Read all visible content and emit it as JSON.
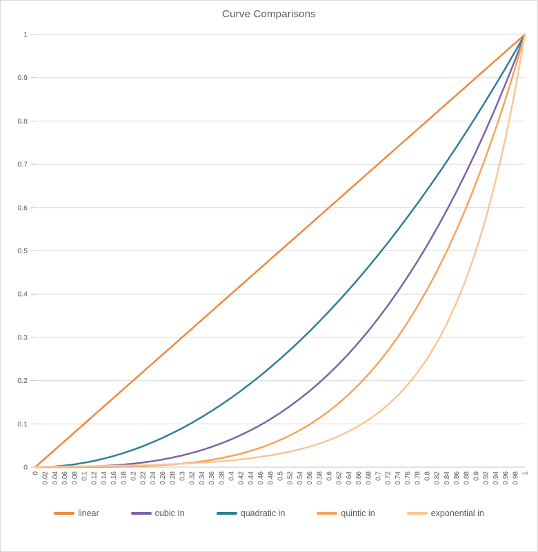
{
  "chart_data": {
    "type": "line",
    "title": "Curve Comparisons",
    "xlabel": "",
    "ylabel": "",
    "xlim": [
      0,
      1
    ],
    "ylim": [
      0,
      1
    ],
    "grid": "horizontal-only",
    "legend_position": "bottom",
    "y_tick_labels": [
      "1",
      "0.9",
      "0.8",
      "0.7",
      "0.6",
      "0.5",
      "0.4",
      "0.3",
      "0.2",
      "0.1",
      "0"
    ],
    "x": [
      0,
      0.02,
      0.04,
      0.06,
      0.08,
      0.1,
      0.12,
      0.14,
      0.16,
      0.18,
      0.2,
      0.22,
      0.24,
      0.26,
      0.28,
      0.3,
      0.32,
      0.34,
      0.36,
      0.38,
      0.4,
      0.42,
      0.44,
      0.46,
      0.48,
      0.5,
      0.52,
      0.54,
      0.56,
      0.58,
      0.6,
      0.62,
      0.64,
      0.66,
      0.68,
      0.7,
      0.72,
      0.74,
      0.76,
      0.78,
      0.8,
      0.82,
      0.84,
      0.86,
      0.88,
      0.9,
      0.92,
      0.94,
      0.96,
      0.98,
      1
    ],
    "x_tick_labels": [
      "0",
      "0.02",
      "0.04",
      "0.06",
      "0.08",
      "0.1",
      "0.12",
      "0.14",
      "0.16",
      "0.18",
      "0.2",
      "0.22",
      "0.24",
      "0.26",
      "0.28",
      "0.3",
      "0.32",
      "0.34",
      "0.36",
      "0.38",
      "0.4",
      "0.42",
      "0.44",
      "0.46",
      "0.48",
      "0.5",
      "0.52",
      "0.54",
      "0.56",
      "0.58",
      "0.6",
      "0.62",
      "0.64",
      "0.66",
      "0.68",
      "0.7",
      "0.72",
      "0.74",
      "0.76",
      "0.78",
      "0.8",
      "0.82",
      "0.84",
      "0.86",
      "0.88",
      "0.9",
      "0.92",
      "0.94",
      "0.96",
      "0.98",
      "1"
    ],
    "series": [
      {
        "name": "linear",
        "color": "#F0883E",
        "values": [
          0,
          0.02,
          0.04,
          0.06,
          0.08,
          0.1,
          0.12,
          0.14,
          0.16,
          0.18,
          0.2,
          0.22,
          0.24,
          0.26,
          0.28,
          0.3,
          0.32,
          0.34,
          0.36,
          0.38,
          0.4,
          0.42,
          0.44,
          0.46,
          0.48,
          0.5,
          0.52,
          0.54,
          0.56,
          0.58,
          0.6,
          0.62,
          0.64,
          0.66,
          0.68,
          0.7,
          0.72,
          0.74,
          0.76,
          0.78,
          0.8,
          0.82,
          0.84,
          0.86,
          0.88,
          0.9,
          0.92,
          0.94,
          0.96,
          0.98,
          1
        ]
      },
      {
        "name": "cubic In",
        "color": "#7D63A8",
        "values": [
          0,
          0,
          0.0001,
          0.0002,
          0.0005,
          0.001,
          0.0017,
          0.0027,
          0.0041,
          0.0058,
          0.008,
          0.0106,
          0.0138,
          0.0176,
          0.022,
          0.027,
          0.0328,
          0.0393,
          0.0467,
          0.0549,
          0.064,
          0.0741,
          0.0852,
          0.0973,
          0.1106,
          0.125,
          0.1406,
          0.1575,
          0.1756,
          0.1951,
          0.216,
          0.2383,
          0.2621,
          0.2875,
          0.3144,
          0.343,
          0.3732,
          0.4052,
          0.439,
          0.4746,
          0.512,
          0.5514,
          0.5927,
          0.6361,
          0.6815,
          0.729,
          0.7787,
          0.8306,
          0.8847,
          0.9412,
          1
        ]
      },
      {
        "name": "quadratic in",
        "color": "#2E7F93",
        "values": [
          0,
          0.0004,
          0.0016,
          0.0036,
          0.0064,
          0.01,
          0.0144,
          0.0196,
          0.0256,
          0.0324,
          0.04,
          0.0484,
          0.0576,
          0.0676,
          0.0784,
          0.09,
          0.1024,
          0.1156,
          0.1296,
          0.1444,
          0.16,
          0.1764,
          0.1936,
          0.2116,
          0.2304,
          0.25,
          0.2704,
          0.2916,
          0.3136,
          0.3364,
          0.36,
          0.3844,
          0.4096,
          0.4356,
          0.4624,
          0.49,
          0.5184,
          0.5476,
          0.5776,
          0.6084,
          0.64,
          0.6724,
          0.7056,
          0.7396,
          0.7744,
          0.81,
          0.8464,
          0.8836,
          0.9216,
          0.9604,
          1
        ]
      },
      {
        "name": "quintic in",
        "color": "#F5A35C",
        "values": [
          0,
          0,
          0,
          0,
          0,
          0.0001,
          0.0002,
          0.0004,
          0.0007,
          0.001,
          0.0016,
          0.0023,
          0.0033,
          0.0046,
          0.0061,
          0.0081,
          0.0105,
          0.0134,
          0.0168,
          0.0209,
          0.0256,
          0.0311,
          0.0375,
          0.0448,
          0.0531,
          0.0625,
          0.0731,
          0.085,
          0.0983,
          0.1132,
          0.1296,
          0.1478,
          0.1678,
          0.1897,
          0.2138,
          0.2401,
          0.2687,
          0.2999,
          0.3336,
          0.3702,
          0.4096,
          0.4521,
          0.4979,
          0.547,
          0.5997,
          0.6561,
          0.7164,
          0.7807,
          0.8493,
          0.9224,
          1
        ]
      },
      {
        "name": "exponential in",
        "color": "#FAC696",
        "values": [
          0,
          0.0011,
          0.0013,
          0.0015,
          0.0017,
          0.002,
          0.0022,
          0.0026,
          0.003,
          0.0034,
          0.0039,
          0.0045,
          0.0052,
          0.0059,
          0.0068,
          0.0078,
          0.009,
          0.0103,
          0.0118,
          0.0136,
          0.0156,
          0.0179,
          0.0206,
          0.0237,
          0.0272,
          0.0313,
          0.0359,
          0.0412,
          0.0474,
          0.0544,
          0.0625,
          0.0718,
          0.0825,
          0.0947,
          0.1088,
          0.125,
          0.1436,
          0.1649,
          0.1895,
          0.2176,
          0.25,
          0.2872,
          0.3299,
          0.3789,
          0.4353,
          0.5,
          0.5744,
          0.6598,
          0.7579,
          0.8706,
          1
        ]
      }
    ]
  },
  "colors": {
    "gridline": "#D9D9D9",
    "axis_line": "#C6C6C6",
    "tick_mark": "#BFBFBF",
    "label_text": "#595959",
    "background": "#FFFFFF",
    "frame_border": "#D9D9D9"
  }
}
